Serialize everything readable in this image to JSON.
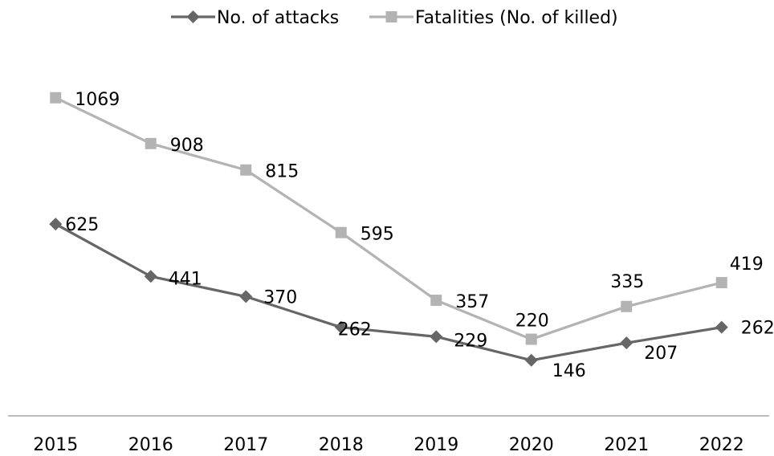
{
  "chart_data": {
    "type": "line",
    "categories": [
      "2015",
      "2016",
      "2017",
      "2018",
      "2019",
      "2020",
      "2021",
      "2022"
    ],
    "series": [
      {
        "name": "No. of attacks",
        "values": [
          625,
          441,
          370,
          262,
          229,
          146,
          207,
          262
        ],
        "color": "#666666",
        "marker": "diamond"
      },
      {
        "name": "Fatalities (No. of killed)",
        "values": [
          1069,
          908,
          815,
          595,
          357,
          220,
          335,
          419
        ],
        "color": "#b3b3b3",
        "marker": "square"
      }
    ],
    "title": "",
    "xlabel": "",
    "ylabel": "",
    "ylim": [
      0,
      1200
    ],
    "grid": false,
    "legend": "top-center",
    "axis_color": "#a6a6a6"
  }
}
